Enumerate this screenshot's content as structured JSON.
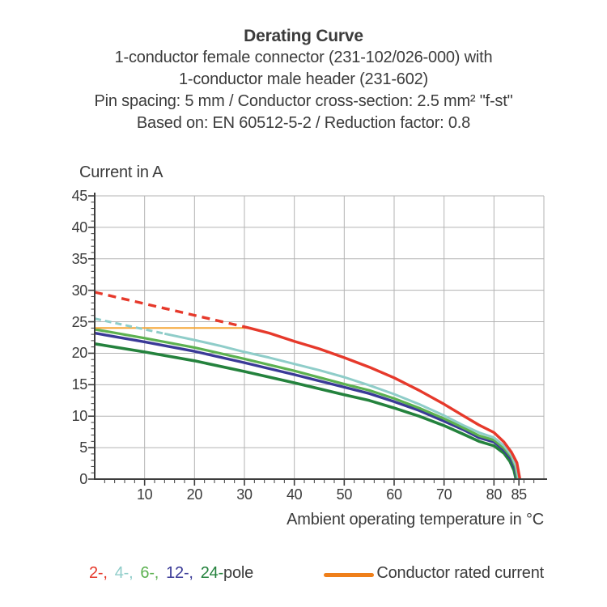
{
  "title_block": {
    "title": "Derating Curve",
    "lines": [
      "1-conductor female connector (231-102/026-000) with",
      "1-conductor male header (231-602)",
      "Pin spacing: 5 mm / Conductor cross-section: 2.5 mm² \"f-st\"",
      "Based on: EN 60512-5-2 / Reduction factor: 0.8"
    ]
  },
  "colors": {
    "text": "#3b3b3b",
    "grid": "#b3b3b3",
    "axis": "#3c3c3c",
    "red": "#e6392b",
    "cyan": "#8fcdc9",
    "green": "#5cb150",
    "navy": "#3a3a97",
    "dark_green": "#24823d",
    "orange_curve": "#f5a637",
    "orange_legend": "#ef7f1a"
  },
  "chart_data": {
    "type": "line",
    "title": "Derating Curve",
    "ylabel": "Current in A",
    "xlabel": "Ambient operating temperature in °C",
    "xlim": [
      0,
      90
    ],
    "ylim": [
      0,
      45
    ],
    "grid": true,
    "x_major_ticks": [
      10,
      20,
      30,
      40,
      50,
      60,
      70,
      80,
      85
    ],
    "x_minor_step": 2,
    "y_major_ticks": [
      0,
      5,
      10,
      15,
      20,
      25,
      30,
      35,
      40,
      45
    ],
    "y_minor_step": 1,
    "x_gridlines": [
      10,
      20,
      30,
      40,
      50,
      60,
      70,
      80,
      90
    ],
    "y_gridlines": [
      5,
      10,
      15,
      20,
      25,
      30,
      35,
      40,
      45
    ],
    "series": [
      {
        "name": "24-pole",
        "color": "#24823d",
        "width": 3.6,
        "segments": [
          {
            "style": "solid",
            "points": [
              [
                0,
                21.5
              ],
              [
                10,
                20.2
              ],
              [
                20,
                18.8
              ],
              [
                30,
                17.1
              ],
              [
                40,
                15.3
              ],
              [
                50,
                13.4
              ],
              [
                55,
                12.5
              ],
              [
                60,
                11.3
              ],
              [
                65,
                10.0
              ],
              [
                70,
                8.5
              ],
              [
                74,
                7.1
              ],
              [
                77,
                6.0
              ],
              [
                80,
                5.3
              ],
              [
                82,
                4.1
              ],
              [
                83.2,
                2.8
              ],
              [
                84.0,
                1.4
              ],
              [
                84.4,
                0
              ]
            ]
          }
        ]
      },
      {
        "name": "12-pole",
        "color": "#3a3a97",
        "width": 3.4,
        "segments": [
          {
            "style": "solid",
            "points": [
              [
                0,
                23.2
              ],
              [
                10,
                21.8
              ],
              [
                20,
                20.3
              ],
              [
                30,
                18.5
              ],
              [
                40,
                16.6
              ],
              [
                50,
                14.6
              ],
              [
                55,
                13.6
              ],
              [
                60,
                12.3
              ],
              [
                65,
                10.9
              ],
              [
                70,
                9.2
              ],
              [
                74,
                7.8
              ],
              [
                77,
                6.6
              ],
              [
                80,
                5.9
              ],
              [
                82,
                4.6
              ],
              [
                83.4,
                3.2
              ],
              [
                84.2,
                1.7
              ],
              [
                84.6,
                0
              ]
            ]
          }
        ]
      },
      {
        "name": "6-pole",
        "color": "#5cb150",
        "width": 3.2,
        "segments": [
          {
            "style": "solid",
            "points": [
              [
                0,
                23.8
              ],
              [
                10,
                22.4
              ],
              [
                20,
                20.9
              ],
              [
                30,
                19.1
              ],
              [
                40,
                17.2
              ],
              [
                50,
                15.1
              ],
              [
                55,
                14.1
              ],
              [
                60,
                12.8
              ],
              [
                65,
                11.3
              ],
              [
                70,
                9.6
              ],
              [
                74,
                8.1
              ],
              [
                77,
                6.9
              ],
              [
                80,
                6.2
              ],
              [
                82,
                4.9
              ],
              [
                83.5,
                3.5
              ],
              [
                84.3,
                1.9
              ],
              [
                84.7,
                0
              ]
            ]
          }
        ]
      },
      {
        "name": "Conductor rated current",
        "color": "#f5a637",
        "width": 2,
        "segments": [
          {
            "style": "solid",
            "points": [
              [
                0,
                24
              ],
              [
                31.3,
                24
              ]
            ]
          }
        ]
      },
      {
        "name": "4-pole",
        "color": "#8fcdc9",
        "width": 3.0,
        "segments": [
          {
            "style": "dashed",
            "dash": "8 5",
            "points": [
              [
                0,
                25.5
              ],
              [
                14,
                23.1
              ]
            ]
          },
          {
            "style": "solid",
            "points": [
              [
                14,
                23.1
              ],
              [
                20,
                22.1
              ],
              [
                25,
                21.2
              ],
              [
                30,
                20.2
              ],
              [
                35,
                19.3
              ],
              [
                40,
                18.3
              ],
              [
                45,
                17.3
              ],
              [
                50,
                16.2
              ],
              [
                55,
                14.9
              ],
              [
                60,
                13.5
              ],
              [
                65,
                11.9
              ],
              [
                70,
                10.1
              ],
              [
                74,
                8.5
              ],
              [
                77,
                7.4
              ],
              [
                80,
                6.6
              ],
              [
                82,
                5.3
              ],
              [
                83.5,
                3.8
              ],
              [
                84.4,
                2.1
              ],
              [
                84.9,
                0
              ]
            ]
          }
        ]
      },
      {
        "name": "2-pole",
        "color": "#e6392b",
        "width": 3.4,
        "segments": [
          {
            "style": "dashed",
            "dash": "10 7",
            "points": [
              [
                0,
                29.7
              ],
              [
                31,
                24
              ]
            ]
          },
          {
            "style": "solid",
            "points": [
              [
                31,
                24
              ],
              [
                35,
                23.2
              ],
              [
                40,
                21.9
              ],
              [
                45,
                20.7
              ],
              [
                50,
                19.3
              ],
              [
                55,
                17.8
              ],
              [
                60,
                16.1
              ],
              [
                65,
                14.1
              ],
              [
                70,
                11.9
              ],
              [
                74,
                10.0
              ],
              [
                77,
                8.6
              ],
              [
                80,
                7.4
              ],
              [
                82,
                5.9
              ],
              [
                83.5,
                4.3
              ],
              [
                84.6,
                2.6
              ],
              [
                85.2,
                0
              ]
            ]
          }
        ]
      }
    ]
  },
  "legend": {
    "pole_items": [
      {
        "label": "2-,",
        "color": "#e6392b"
      },
      {
        "label": "4-,",
        "color": "#8fcdc9"
      },
      {
        "label": "6-,",
        "color": "#5cb150"
      },
      {
        "label": "12-,",
        "color": "#3a3a97"
      },
      {
        "label": "24-",
        "color": "#24823d"
      }
    ],
    "pole_suffix": "pole",
    "rated_label": "Conductor rated current"
  }
}
